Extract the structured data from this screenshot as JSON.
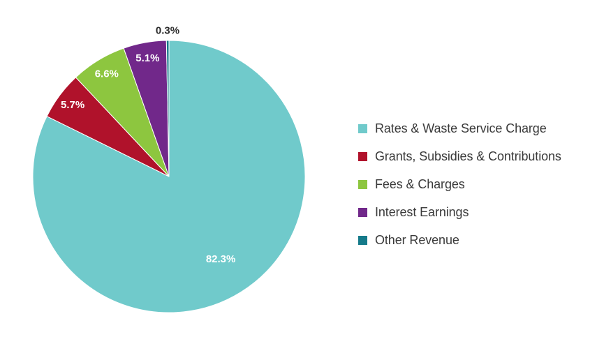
{
  "chart_data": {
    "type": "pie",
    "title": "",
    "slices": [
      {
        "name": "Rates & Waste Service Charge",
        "value": 82.3,
        "label": "82.3%",
        "color": "#70cacb",
        "label_color": "#ffffff"
      },
      {
        "name": "Grants, Subsidies & Contributions",
        "value": 5.7,
        "label": "5.7%",
        "color": "#b0122b",
        "label_color": "#ffffff"
      },
      {
        "name": "Fees & Charges",
        "value": 6.6,
        "label": "6.6%",
        "color": "#8dc63f",
        "label_color": "#ffffff"
      },
      {
        "name": "Interest Earnings",
        "value": 5.1,
        "label": "5.1%",
        "color": "#71288a",
        "label_color": "#ffffff"
      },
      {
        "name": "Other Revenue",
        "value": 0.3,
        "label": "0.3%",
        "color": "#157a8a",
        "label_color": "#2b2b2b"
      }
    ],
    "start_angle": "12 o'clock",
    "direction": "clockwise",
    "legend_position": "right"
  }
}
